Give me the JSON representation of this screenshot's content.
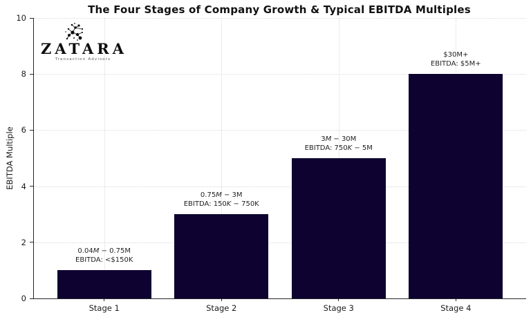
{
  "logo": {
    "name": "ZATARA",
    "tagline": "Transaction Advisors"
  },
  "chart_data": {
    "type": "bar",
    "title": "The Four Stages of Company Growth & Typical EBITDA Multiples",
    "ylabel": "EBITDA Multiple",
    "ylim": [
      0,
      10
    ],
    "yticks": [
      0,
      2,
      4,
      6,
      8,
      10
    ],
    "categories": [
      "Stage 1",
      "Stage 2",
      "Stage 3",
      "Stage 4"
    ],
    "values": [
      1,
      3,
      5,
      8
    ],
    "grid": true,
    "legend": "none",
    "bar_color": "#0d0230",
    "grid_color": "#d9d9d9",
    "annotations": [
      {
        "revenue": [
          {
            "t": "0.04"
          },
          {
            "t": "M",
            "i": true
          },
          {
            "t": " − 0.75M"
          }
        ],
        "ebitda": [
          {
            "t": "EBITDA: <$150K"
          }
        ]
      },
      {
        "revenue": [
          {
            "t": "0.75"
          },
          {
            "t": "M",
            "i": true
          },
          {
            "t": " − 3M"
          }
        ],
        "ebitda": [
          {
            "t": "EBITDA: 150"
          },
          {
            "t": "K",
            "i": true
          },
          {
            "t": " − 750K"
          }
        ]
      },
      {
        "revenue": [
          {
            "t": "3"
          },
          {
            "t": "M",
            "i": true
          },
          {
            "t": " − 30M"
          }
        ],
        "ebitda": [
          {
            "t": "EBITDA: 750"
          },
          {
            "t": "K",
            "i": true
          },
          {
            "t": " − 5M"
          }
        ]
      },
      {
        "revenue": [
          {
            "t": "$30M+"
          }
        ],
        "ebitda": [
          {
            "t": "EBITDA: $5M+"
          }
        ]
      }
    ]
  }
}
